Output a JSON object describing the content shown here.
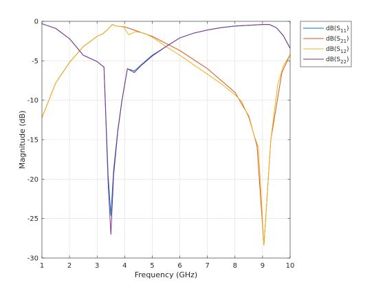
{
  "chart_data": {
    "type": "line",
    "title": "",
    "xlabel": "Frequency (GHz)",
    "ylabel": "Magnitude (dB)",
    "xlim": [
      1,
      10
    ],
    "ylim": [
      -30,
      0
    ],
    "xticks": [
      "1",
      "2",
      "3",
      "4",
      "5",
      "6",
      "7",
      "8",
      "9",
      "10"
    ],
    "yticks": [
      "0",
      "-5",
      "-10",
      "-15",
      "-20",
      "-25",
      "-30"
    ],
    "grid": true,
    "legend_position": "outside-top-right",
    "series": [
      {
        "name": "dB(S11)",
        "legend_main": "dB(S",
        "legend_sub": "11",
        "legend_close": ")",
        "color": "#0072BD",
        "x": [
          1,
          1.5,
          2,
          2.5,
          3,
          3.25,
          3.4,
          3.5,
          3.6,
          3.75,
          3.9,
          4.1,
          4.35,
          4.6,
          5,
          5.5,
          6,
          6.5,
          7,
          7.5,
          8,
          8.5,
          9,
          9.25,
          9.5,
          9.75,
          10
        ],
        "y": [
          -0.3,
          -0.9,
          -2.2,
          -4.3,
          -5.1,
          -5.8,
          -19.5,
          -24.6,
          -18.8,
          -13.8,
          -10,
          -6,
          -6.3,
          -5.5,
          -4.3,
          -3.2,
          -2.1,
          -1.5,
          -1.1,
          -0.8,
          -0.6,
          -0.5,
          -0.4,
          -0.4,
          -0.8,
          -1.8,
          -3.4
        ]
      },
      {
        "name": "dB(S21)",
        "legend_main": "dB(S",
        "legend_sub": "21",
        "legend_close": ")",
        "color": "#D95319",
        "x": [
          1,
          1.5,
          2,
          2.5,
          3,
          3.2,
          3.4,
          3.55,
          3.7,
          4,
          4.5,
          5,
          6,
          7,
          8,
          8.5,
          8.8,
          9.05,
          9.3,
          9.7,
          10
        ],
        "y": [
          -12.2,
          -7.8,
          -5.2,
          -3.2,
          -1.9,
          -1.6,
          -1,
          -0.4,
          -0.6,
          -0.7,
          -1.3,
          -1.9,
          -3.7,
          -6,
          -9,
          -12,
          -15.8,
          -28.4,
          -15,
          -6.5,
          -4.2
        ]
      },
      {
        "name": "dB(S12)",
        "legend_main": "dB(S",
        "legend_sub": "12",
        "legend_close": ")",
        "color": "#EDB120",
        "x": [
          1,
          1.5,
          2,
          2.5,
          3,
          3.2,
          3.4,
          3.55,
          3.7,
          3.95,
          4.15,
          4.4,
          4.7,
          5,
          5.5,
          6,
          6.5,
          7,
          7.5,
          8,
          8.25,
          8.5,
          8.7,
          8.85,
          9.05,
          9.3,
          9.55,
          9.75,
          10
        ],
        "y": [
          -12.2,
          -7.8,
          -5.2,
          -3.2,
          -1.9,
          -1.6,
          -1,
          -0.4,
          -0.6,
          -0.7,
          -1.7,
          -1.3,
          -1.5,
          -2,
          -3.2,
          -4.3,
          -5.5,
          -6.7,
          -7.9,
          -9.3,
          -10.2,
          -12.2,
          -14.5,
          -16,
          -28.4,
          -15,
          -8,
          -5.7,
          -4.2
        ]
      },
      {
        "name": "dB(S22)",
        "legend_main": "dB(S",
        "legend_sub": "22",
        "legend_close": ")",
        "color": "#7E2F8E",
        "x": [
          1,
          1.5,
          2,
          2.5,
          3,
          3.25,
          3.4,
          3.5,
          3.6,
          3.75,
          3.9,
          4.1,
          4.35,
          4.6,
          5,
          5.5,
          6,
          6.5,
          7,
          7.5,
          8,
          8.5,
          9,
          9.25,
          9.5,
          9.75,
          10
        ],
        "y": [
          -0.3,
          -0.9,
          -2.2,
          -4.3,
          -5.1,
          -5.8,
          -20.5,
          -27,
          -19.5,
          -14,
          -10.1,
          -6,
          -6.5,
          -5.6,
          -4.4,
          -3.2,
          -2.1,
          -1.5,
          -1.1,
          -0.8,
          -0.6,
          -0.5,
          -0.4,
          -0.4,
          -0.8,
          -1.8,
          -3.4
        ]
      }
    ]
  }
}
